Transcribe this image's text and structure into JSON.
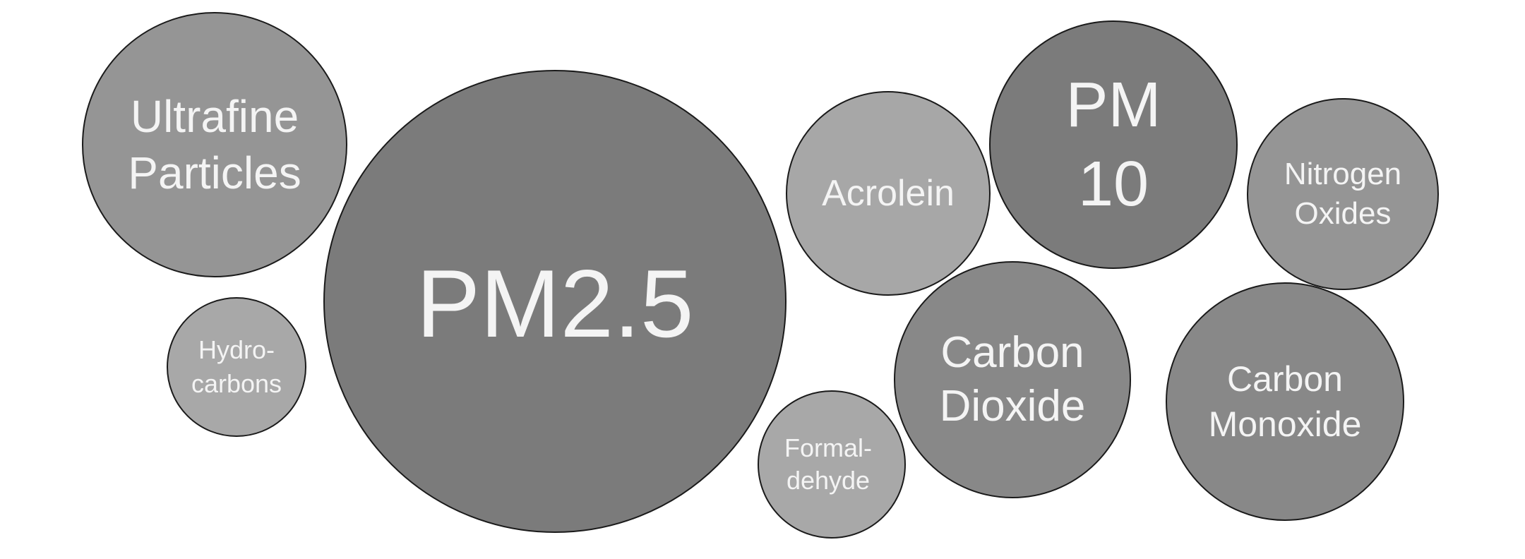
{
  "bubbles": {
    "ultrafine": {
      "label": "Ultrafine\nParticles",
      "color": "#959595"
    },
    "pm25": {
      "label": "PM2.5",
      "color": "#7b7b7b"
    },
    "hydro": {
      "label": "Hydro-\ncarbons",
      "color": "#a8a8a8"
    },
    "acrolein": {
      "label": "Acrolein",
      "color": "#a7a7a7"
    },
    "formal": {
      "label": "Formal-\ndehyde",
      "color": "#a8a8a8"
    },
    "pm10": {
      "label": "PM\n10",
      "color": "#7b7b7b"
    },
    "co2": {
      "label": "Carbon\nDioxide",
      "color": "#888888"
    },
    "nox": {
      "label": "Nitrogen\nOxides",
      "color": "#959595"
    },
    "co": {
      "label": "Carbon\nMonoxide",
      "color": "#888888"
    }
  }
}
